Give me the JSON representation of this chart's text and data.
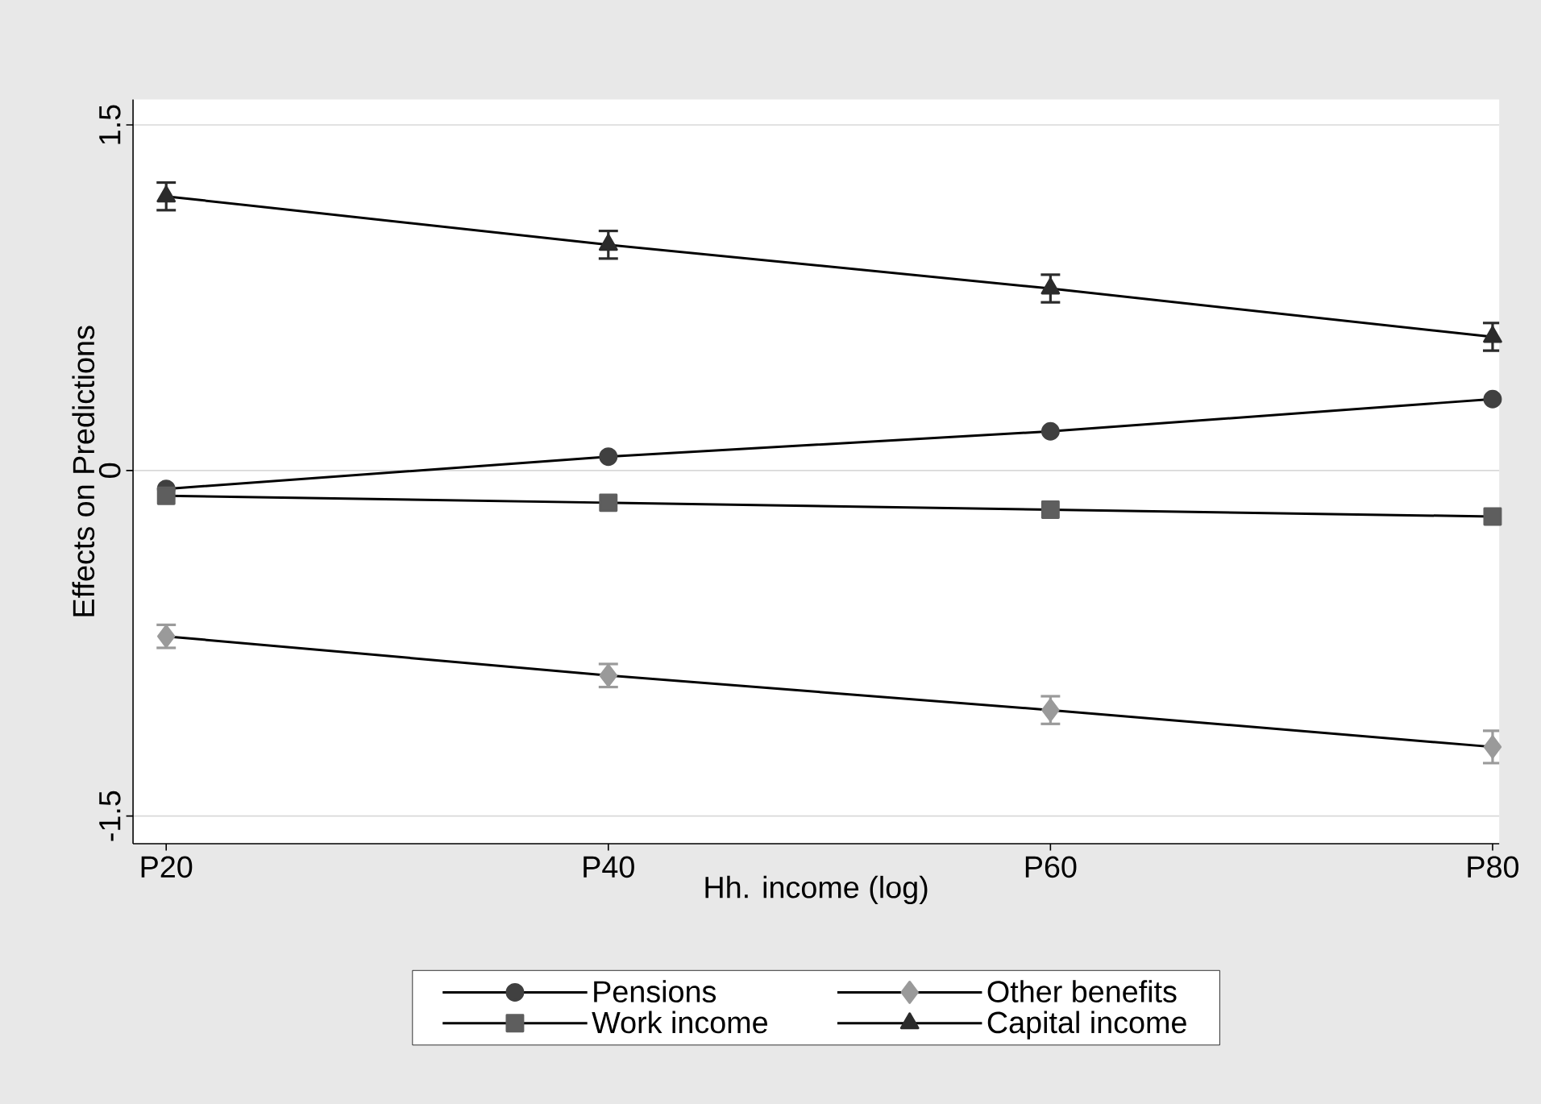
{
  "chart_data": {
    "type": "line",
    "xlabel": "Hh. income (log)",
    "ylabel": "Effects on Predictions",
    "categories": [
      "P20",
      "P40",
      "P60",
      "P80"
    ],
    "series": [
      {
        "name": "Pensions",
        "color": "#404040",
        "marker": "circle",
        "values": [
          -0.08,
          0.06,
          0.17,
          0.31
        ]
      },
      {
        "name": "Other benefits",
        "color": "#9a9a9a",
        "marker": "diamond",
        "values": [
          -0.72,
          -0.89,
          -1.04,
          -1.2
        ],
        "errors": [
          0.05,
          0.05,
          0.06,
          0.07
        ]
      },
      {
        "name": "Work income",
        "color": "#5e5e5e",
        "marker": "square",
        "values": [
          -0.11,
          -0.14,
          -0.17,
          -0.2
        ]
      },
      {
        "name": "Capital income",
        "color": "#2b2b2b",
        "marker": "triangle",
        "values": [
          1.19,
          0.98,
          0.79,
          0.58
        ],
        "errors": [
          0.06,
          0.06,
          0.06,
          0.06
        ]
      }
    ],
    "ylim": [
      -1.62,
      1.61
    ],
    "yticks": [
      -1.5,
      0,
      1.5
    ],
    "grid": "y",
    "legend": "bottom"
  }
}
